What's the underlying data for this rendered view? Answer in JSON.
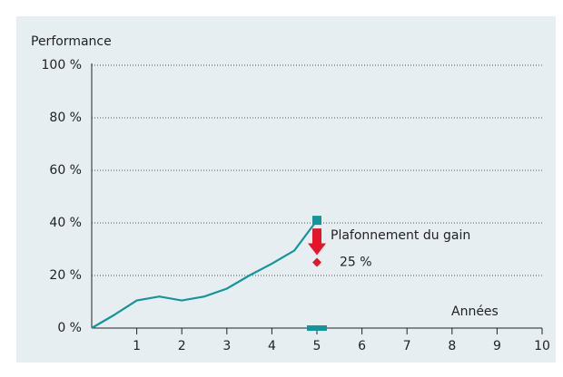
{
  "chart_data": {
    "type": "line",
    "y_label": "Performance",
    "x_label": "Années",
    "x": [
      0,
      0.5,
      1,
      1.5,
      2,
      2.5,
      3,
      3.5,
      4,
      4.5,
      5
    ],
    "values": [
      0,
      5,
      10.5,
      12,
      10.5,
      12,
      15,
      20,
      24.5,
      29.5,
      41
    ],
    "color": "#14959a",
    "xlim": [
      0,
      10
    ],
    "xticks": [
      1,
      2,
      3,
      4,
      5,
      6,
      7,
      8,
      9,
      10
    ],
    "ylim": [
      0,
      100
    ],
    "yticks": [
      {
        "value": 0,
        "label": "0 %"
      },
      {
        "value": 20,
        "label": "20 %"
      },
      {
        "value": 40,
        "label": "40 %"
      },
      {
        "value": 60,
        "label": "60 %"
      },
      {
        "value": 80,
        "label": "80 %"
      },
      {
        "value": 100,
        "label": "100 %"
      }
    ],
    "grid": true,
    "annotation": {
      "text": "Plafonnement du gain",
      "x": 5,
      "value": 25,
      "value_label": "25 %",
      "color": "#e3152a"
    }
  }
}
